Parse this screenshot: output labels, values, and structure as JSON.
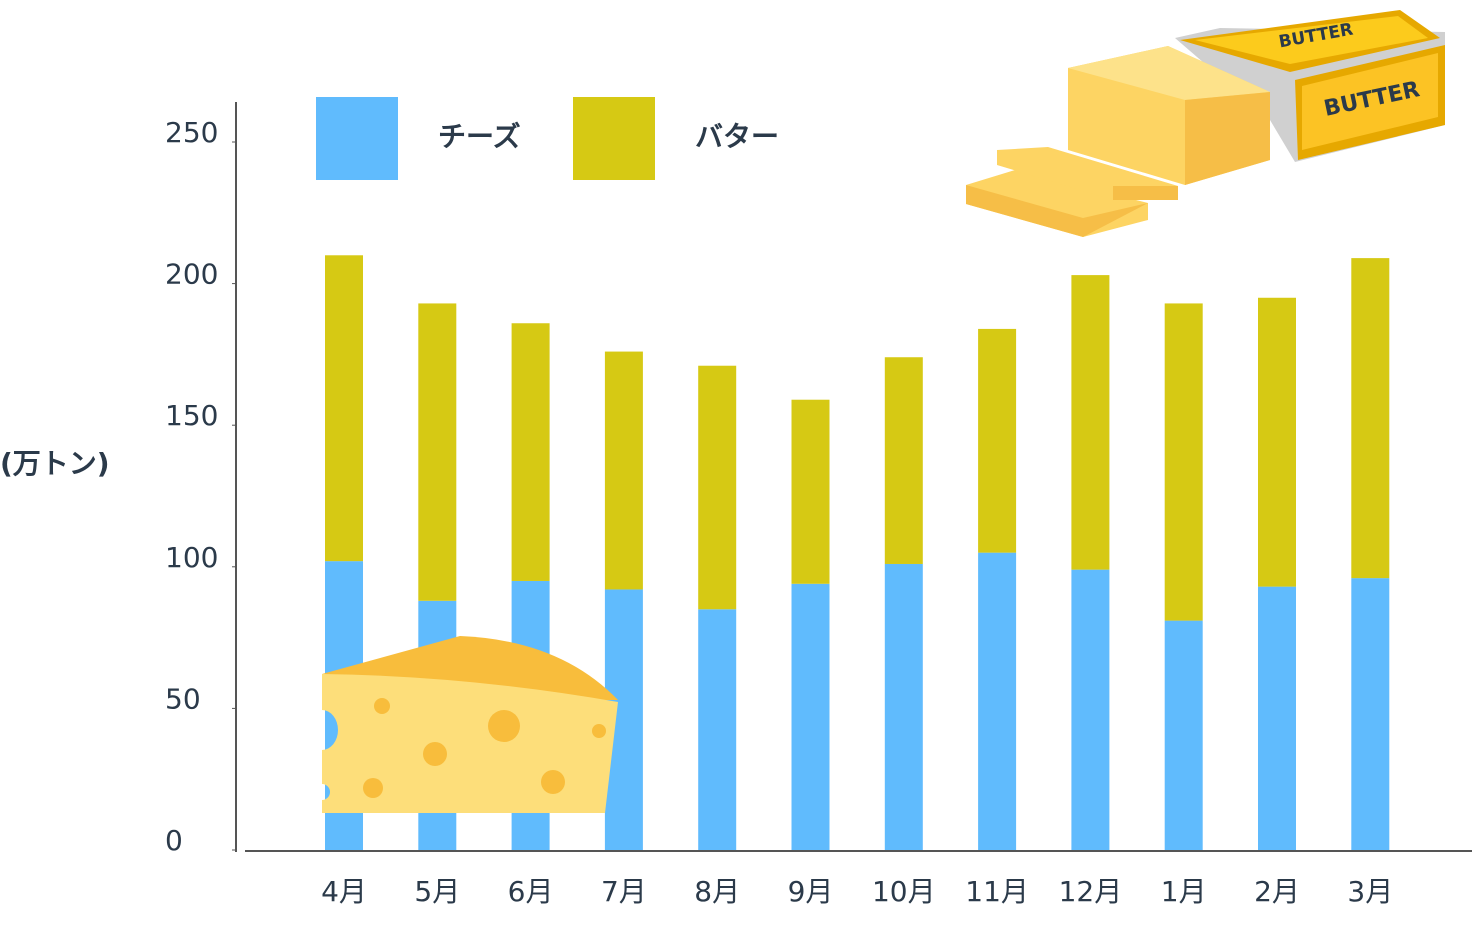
{
  "chart_data": {
    "type": "stacked-bar",
    "y_label": "(万トン)",
    "categories": [
      "4月",
      "5月",
      "6月",
      "7月",
      "8月",
      "9月",
      "10月",
      "11月",
      "12月",
      "1月",
      "2月",
      "3月"
    ],
    "series": [
      {
        "name": "チーズ",
        "color": "#60bbfd",
        "values": [
          102,
          88,
          95,
          92,
          85,
          94,
          101,
          105,
          99,
          81,
          93,
          96
        ]
      },
      {
        "name": "バター",
        "color": "#d6c914",
        "values": [
          108,
          105,
          91,
          84,
          86,
          65,
          73,
          79,
          104,
          112,
          102,
          113
        ]
      }
    ],
    "ylim": [
      0,
      250
    ],
    "yticks": [
      0,
      50,
      100,
      150,
      200,
      250
    ],
    "grid": false,
    "annotations": [
      "BUTTER",
      "BUTTER"
    ]
  }
}
